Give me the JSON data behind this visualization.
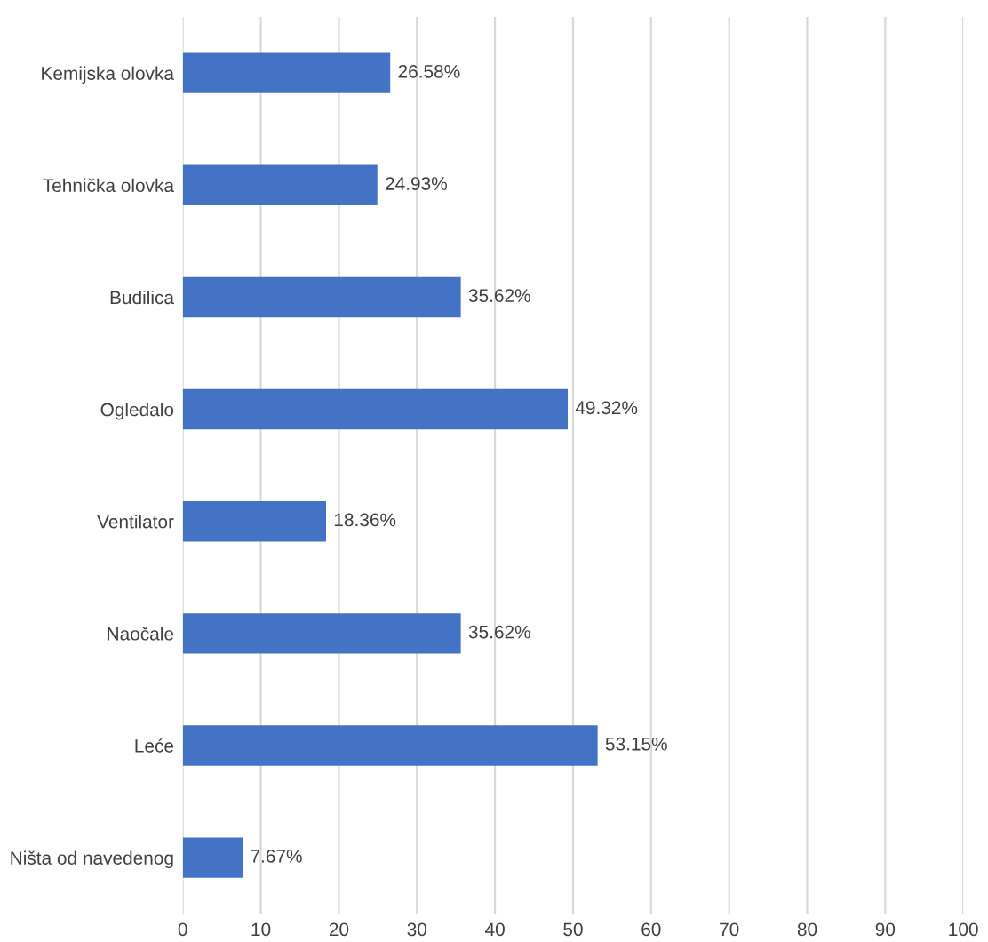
{
  "chart_data": {
    "type": "bar",
    "orientation": "horizontal",
    "categories": [
      "Kemijska olovka",
      "Tehnička olovka",
      "Budilica",
      "Ogledalo",
      "Ventilator",
      "Naočale",
      "Leće",
      "Ništa od navedenog"
    ],
    "values": [
      26.58,
      24.93,
      35.62,
      49.32,
      18.36,
      35.62,
      53.15,
      7.67
    ],
    "value_labels": [
      "26.58%",
      "24.93%",
      "35.62%",
      "49.32%",
      "18.36%",
      "35.62%",
      "53.15%",
      "7.67%"
    ],
    "color": "#4472c4",
    "xlim": [
      0,
      100
    ],
    "xticks": [
      0,
      10,
      20,
      30,
      40,
      50,
      60,
      70,
      80,
      90,
      100
    ],
    "grid": "x",
    "legend": false
  }
}
